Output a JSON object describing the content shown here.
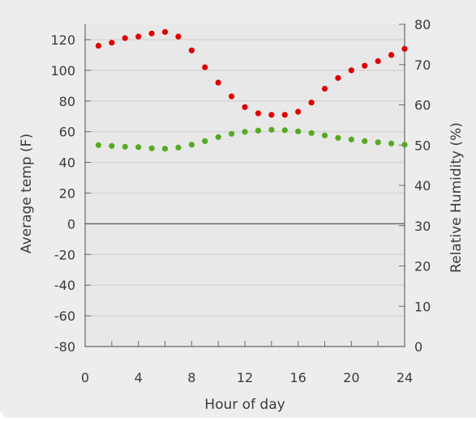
{
  "chart_data": {
    "type": "scatter",
    "xlabel": "Hour of day",
    "ylabel_left": "Average temp (F)",
    "ylabel_right": "Relative Humidity (%)",
    "xlim": [
      0,
      24
    ],
    "ylim_left": [
      -80,
      130
    ],
    "ylim_right": [
      0,
      80
    ],
    "x_ticks": [
      "0",
      "4",
      "8",
      "12",
      "16",
      "20",
      "24"
    ],
    "y_left_ticks": [
      "-80",
      "-60",
      "-40",
      "-20",
      "0",
      "20",
      "40",
      "60",
      "80",
      "100",
      "120"
    ],
    "y_right_ticks": [
      "0",
      "10",
      "20",
      "30",
      "40",
      "50",
      "60",
      "70",
      "80"
    ],
    "grid": true,
    "colors": {
      "temp": "#dd0000",
      "humidity": "#55aa22",
      "plot_background": "#e8e8e8",
      "grid": "#d6d6d6",
      "axis": "#6c6c6c"
    },
    "series": [
      {
        "axis": "left",
        "values": [
          {
            "x": 1,
            "y": 116
          },
          {
            "x": 2,
            "y": 118
          },
          {
            "x": 3,
            "y": 121
          },
          {
            "x": 4,
            "y": 122
          },
          {
            "x": 5,
            "y": 124
          },
          {
            "x": 6,
            "y": 125
          },
          {
            "x": 7,
            "y": 122
          },
          {
            "x": 8,
            "y": 113
          },
          {
            "x": 9,
            "y": 102
          },
          {
            "x": 10,
            "y": 92
          },
          {
            "x": 11,
            "y": 83
          },
          {
            "x": 12,
            "y": 76
          },
          {
            "x": 13,
            "y": 72
          },
          {
            "x": 14,
            "y": 71
          },
          {
            "x": 15,
            "y": 71
          },
          {
            "x": 16,
            "y": 73
          },
          {
            "x": 17,
            "y": 79
          },
          {
            "x": 18,
            "y": 88
          },
          {
            "x": 19,
            "y": 95
          },
          {
            "x": 20,
            "y": 100
          },
          {
            "x": 21,
            "y": 103
          },
          {
            "x": 22,
            "y": 106
          },
          {
            "x": 23,
            "y": 110
          },
          {
            "x": 24,
            "y": 114
          }
        ]
      },
      {
        "axis": "right",
        "values": [
          {
            "x": 1,
            "y": 50
          },
          {
            "x": 2,
            "y": 49.8
          },
          {
            "x": 3,
            "y": 49.6
          },
          {
            "x": 4,
            "y": 49.5
          },
          {
            "x": 5,
            "y": 49.2
          },
          {
            "x": 6,
            "y": 49.1
          },
          {
            "x": 7,
            "y": 49.4
          },
          {
            "x": 8,
            "y": 50.1
          },
          {
            "x": 9,
            "y": 51
          },
          {
            "x": 10,
            "y": 52
          },
          {
            "x": 11,
            "y": 52.8
          },
          {
            "x": 12,
            "y": 53.3
          },
          {
            "x": 13,
            "y": 53.6
          },
          {
            "x": 14,
            "y": 53.8
          },
          {
            "x": 15,
            "y": 53.7
          },
          {
            "x": 16,
            "y": 53.4
          },
          {
            "x": 17,
            "y": 53
          },
          {
            "x": 18,
            "y": 52.4
          },
          {
            "x": 19,
            "y": 51.8
          },
          {
            "x": 20,
            "y": 51.4
          },
          {
            "x": 21,
            "y": 51
          },
          {
            "x": 22,
            "y": 50.7
          },
          {
            "x": 23,
            "y": 50.4
          },
          {
            "x": 24,
            "y": 50.1
          }
        ]
      }
    ]
  }
}
